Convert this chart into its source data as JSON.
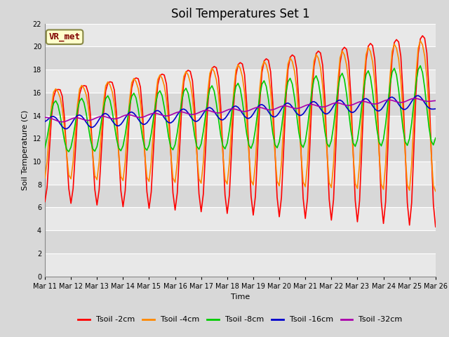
{
  "title": "Soil Temperatures Set 1",
  "xlabel": "Time",
  "ylabel": "Soil Temperature (C)",
  "ylim": [
    0,
    22
  ],
  "yticks": [
    0,
    2,
    4,
    6,
    8,
    10,
    12,
    14,
    16,
    18,
    20,
    22
  ],
  "background_color": "#d8d8d8",
  "plot_bg_color": "#e0e0e0",
  "grid_color": "#ffffff",
  "label_box_text": "VR_met",
  "label_box_facecolor": "#ffffcc",
  "label_box_edgecolor": "#888844",
  "label_box_textcolor": "#800000",
  "series_names": [
    "Tsoil -2cm",
    "Tsoil -4cm",
    "Tsoil -8cm",
    "Tsoil -16cm",
    "Tsoil -32cm"
  ],
  "series_colors": [
    "#ff0000",
    "#ff8800",
    "#00cc00",
    "#0000cc",
    "#aa00aa"
  ],
  "series_lw": [
    1.2,
    1.2,
    1.2,
    1.2,
    1.2
  ],
  "x_tick_labels": [
    "Mar 11",
    "Mar 12",
    "Mar 13",
    "Mar 14",
    "Mar 15",
    "Mar 16",
    "Mar 17",
    "Mar 18",
    "Mar 19",
    "Mar 20",
    "Mar 21",
    "Mar 22",
    "Mar 23",
    "Mar 24",
    "Mar 25",
    "Mar 26"
  ],
  "title_fontsize": 12,
  "axis_fontsize": 8,
  "tick_fontsize": 7,
  "legend_fontsize": 8,
  "figsize": [
    6.4,
    4.8
  ],
  "dpi": 100
}
